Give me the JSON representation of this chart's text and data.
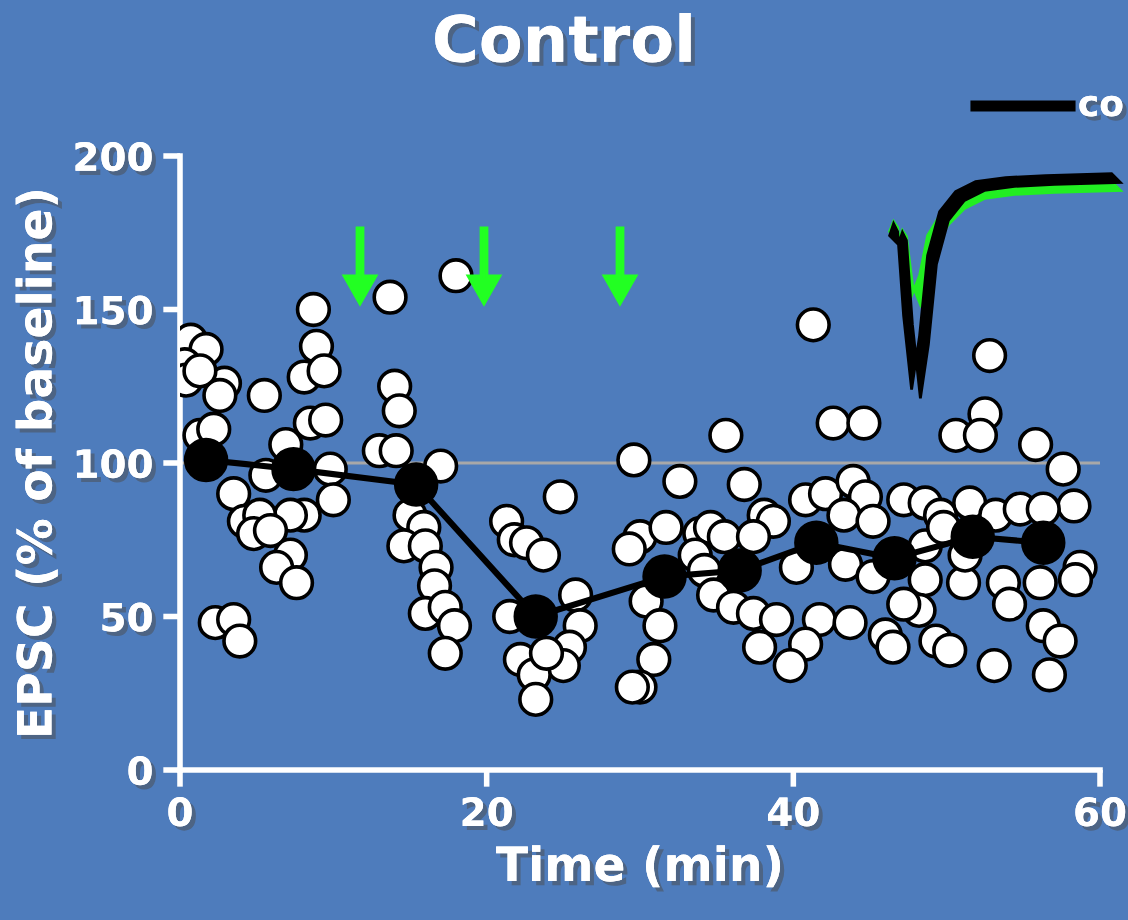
{
  "chart_data": {
    "type": "scatter",
    "title": "Control",
    "xlabel": "Time (min)",
    "ylabel": "EPSC (% of baseline)",
    "xlim": [
      0,
      60
    ],
    "xticks": [
      0,
      20,
      40,
      60
    ],
    "ylim": [
      0,
      200
    ],
    "yticks": [
      0,
      50,
      100,
      150,
      200
    ],
    "grid": false,
    "marker": "circle",
    "ref_lines": [
      {
        "axis": "y",
        "value": 100,
        "color": "#a8a8a8"
      }
    ],
    "annotations": [
      "co"
    ],
    "series": [
      {
        "color": "#ffffff",
        "x": [
          0.7,
          1.7,
          0.3,
          0.4,
          2.9,
          2.6,
          1.3,
          5.5,
          8.7,
          8.9,
          8.1,
          9.4,
          8.5,
          9.5,
          6.9,
          1.3,
          2.2,
          9.8,
          10.0,
          8.1,
          7.2,
          5.6,
          3.5,
          4.2,
          5.2,
          4.8,
          5.9,
          7.2,
          6.3,
          7.6,
          2.3,
          3.5,
          3.9,
          14.0,
          14.3,
          13.0,
          14.1,
          17.0,
          15.0,
          15.9,
          14.6,
          16.0,
          16.7,
          16.6,
          16.0,
          17.3,
          17.9,
          17.3,
          13.7,
          18.0,
          24.8,
          21.3,
          21.8,
          22.6,
          23.7,
          21.5,
          25.8,
          26.1,
          25.4,
          22.2,
          25.0,
          23.1,
          23.2,
          23.9,
          29.6,
          32.6,
          35.6,
          36.8,
          30.0,
          29.3,
          31.7,
          30.4,
          31.3,
          30.9,
          30.0,
          29.5,
          33.9,
          34.6,
          35.5,
          33.6,
          34.2,
          34.8,
          36.1,
          37.4,
          37.8,
          38.1,
          38.7,
          37.4,
          38.9,
          41.3,
          52.8,
          42.6,
          44.6,
          52.5,
          50.6,
          52.2,
          55.8,
          57.6,
          58.3,
          40.8,
          42.1,
          43.9,
          44.7,
          47.2,
          48.6,
          49.6,
          51.5,
          53.2,
          54.8,
          56.3,
          43.3,
          45.2,
          40.2,
          43.4,
          45.2,
          48.6,
          51.1,
          53.7,
          56.1,
          58.7,
          58.4,
          41.7,
          43.7,
          40.8,
          39.8,
          48.2,
          47.2,
          46.0,
          46.5,
          49.3,
          50.2,
          53.1,
          54.1,
          56.3,
          57.4,
          56.7,
          48.6,
          49.8,
          51.2
        ],
        "values": [
          140,
          137,
          132,
          127,
          126,
          122,
          130,
          122,
          150,
          138,
          128,
          130,
          113,
          114,
          106,
          109,
          111,
          98,
          88,
          83,
          83,
          96,
          90,
          81,
          83,
          77,
          78,
          70,
          66,
          61,
          48,
          49,
          42,
          125,
          117,
          104,
          104,
          99,
          83,
          79,
          73,
          73,
          66,
          60,
          51,
          53,
          47,
          38,
          154,
          161,
          89,
          81,
          75,
          74,
          70,
          50,
          57,
          47,
          40,
          36,
          34,
          31,
          23,
          38,
          101,
          94,
          109,
          93,
          76,
          72,
          79,
          55,
          47,
          36,
          27,
          27,
          77,
          79,
          76,
          70,
          65,
          57,
          53,
          51,
          40,
          83,
          81,
          76,
          49,
          145,
          135,
          113,
          113,
          116,
          109,
          109,
          106,
          98,
          86,
          88,
          90,
          94,
          89,
          88,
          87,
          83,
          87,
          83,
          85,
          85,
          83,
          81,
          66,
          67,
          63,
          62,
          61,
          61,
          61,
          66,
          62,
          49,
          48,
          41,
          34,
          52,
          54,
          44,
          40,
          42,
          39,
          34,
          54,
          47,
          42,
          31,
          73,
          79,
          70
        ]
      },
      {
        "type": "line",
        "color": "#000000",
        "x": [
          1.7,
          7.4,
          15.4,
          23.2,
          31.6,
          36.5,
          41.5,
          46.6,
          51.7,
          56.3
        ],
        "values": [
          101,
          98,
          93,
          50,
          63,
          65,
          74,
          69,
          76,
          74
        ]
      }
    ]
  }
}
